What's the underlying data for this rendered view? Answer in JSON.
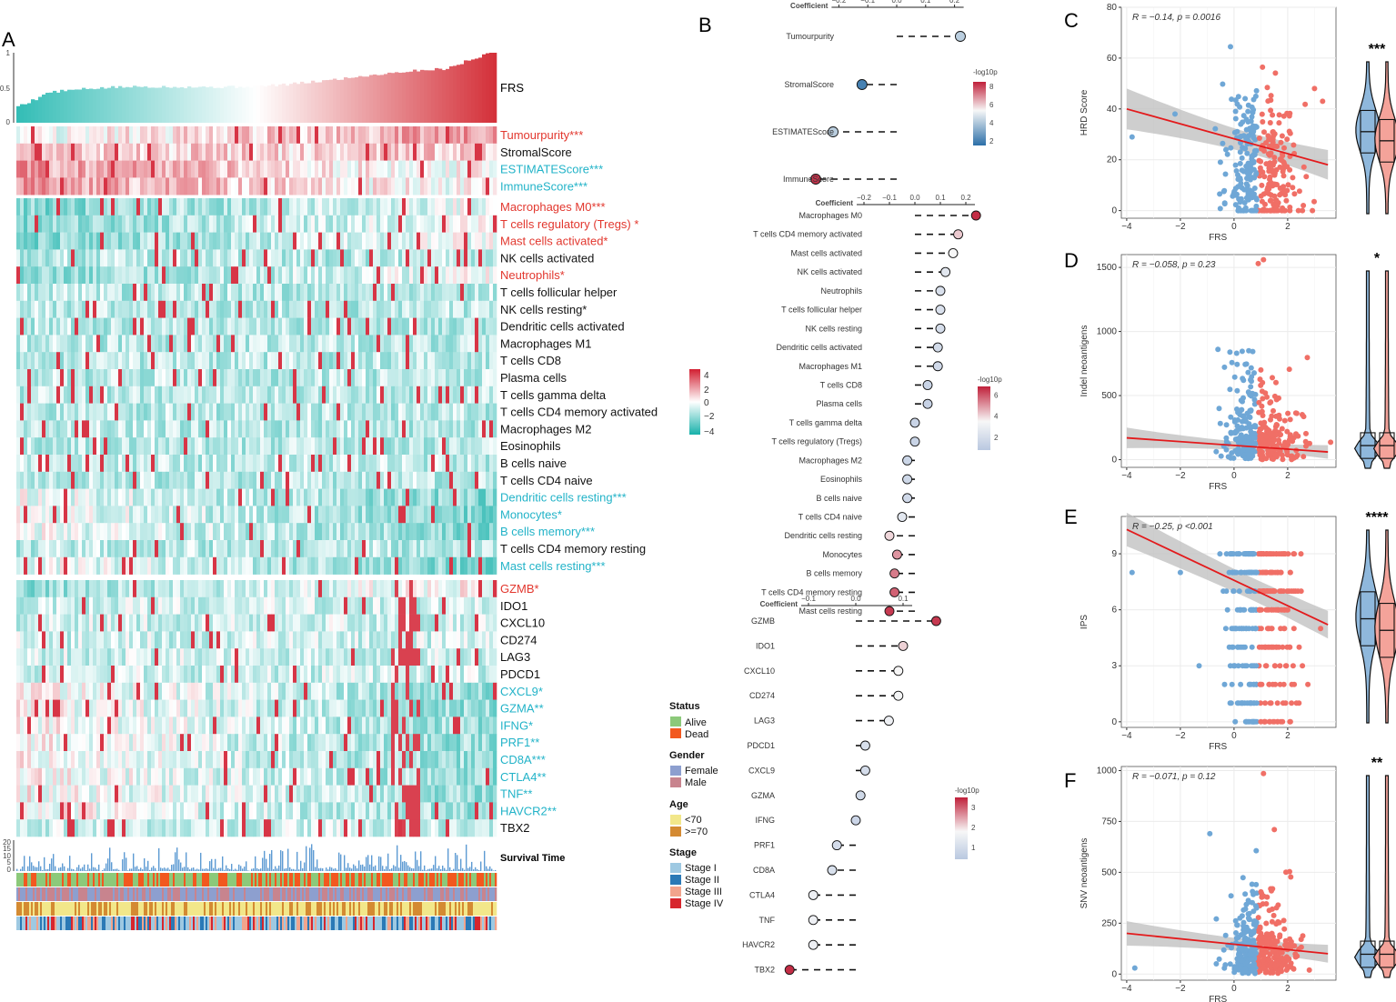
{
  "colors": {
    "teal": "#2ab7b0",
    "red": "#d7262d",
    "label_red": "#e2372e",
    "label_teal": "#22b3c8",
    "blue_pt": "#6fa7d6",
    "red_pt": "#f06f66",
    "grey_band": "#bfbfbf"
  },
  "panel_letters": [
    "A",
    "B",
    "C",
    "D",
    "E",
    "F"
  ],
  "panelA": {
    "frs_label": "FRS",
    "frs_axis": [
      "1",
      "0.5",
      "0"
    ],
    "groups": [
      [
        {
          "name": "Tumourpurity***",
          "tone": "red"
        },
        {
          "name": "StromalScore",
          "tone": "black"
        },
        {
          "name": "ESTIMATEScore***",
          "tone": "teal"
        },
        {
          "name": "ImmuneScore***",
          "tone": "teal"
        }
      ],
      [
        {
          "name": "Macrophages M0***",
          "tone": "red"
        },
        {
          "name": "T cells regulatory (Tregs) *",
          "tone": "red"
        },
        {
          "name": "Mast cells activated*",
          "tone": "red"
        },
        {
          "name": "NK cells activated",
          "tone": "black"
        },
        {
          "name": "Neutrophils*",
          "tone": "red"
        },
        {
          "name": "T cells follicular helper",
          "tone": "black"
        },
        {
          "name": "NK cells resting*",
          "tone": "black"
        },
        {
          "name": "Dendritic cells activated",
          "tone": "black"
        },
        {
          "name": "Macrophages M1",
          "tone": "black"
        },
        {
          "name": "T cells CD8",
          "tone": "black"
        },
        {
          "name": "Plasma cells",
          "tone": "black"
        },
        {
          "name": "T cells gamma delta",
          "tone": "black"
        },
        {
          "name": "T cells CD4 memory activated",
          "tone": "black"
        },
        {
          "name": "Macrophages M2",
          "tone": "black"
        },
        {
          "name": "Eosinophils",
          "tone": "black"
        },
        {
          "name": "B cells naive",
          "tone": "black"
        },
        {
          "name": "T cells CD4 naive",
          "tone": "black"
        },
        {
          "name": "Dendritic cells resting***",
          "tone": "teal"
        },
        {
          "name": "Monocytes*",
          "tone": "teal"
        },
        {
          "name": "B cells memory***",
          "tone": "teal"
        },
        {
          "name": "T cells CD4 memory resting",
          "tone": "black"
        },
        {
          "name": "Mast cells resting***",
          "tone": "teal"
        }
      ],
      [
        {
          "name": "GZMB*",
          "tone": "red"
        },
        {
          "name": "IDO1",
          "tone": "black"
        },
        {
          "name": "CXCL10",
          "tone": "black"
        },
        {
          "name": "CD274",
          "tone": "black"
        },
        {
          "name": "LAG3",
          "tone": "black"
        },
        {
          "name": "PDCD1",
          "tone": "black"
        },
        {
          "name": "CXCL9*",
          "tone": "teal"
        },
        {
          "name": "GZMA**",
          "tone": "teal"
        },
        {
          "name": "IFNG*",
          "tone": "teal"
        },
        {
          "name": "PRF1**",
          "tone": "teal"
        },
        {
          "name": "CD8A***",
          "tone": "teal"
        },
        {
          "name": "CTLA4**",
          "tone": "teal"
        },
        {
          "name": "TNF**",
          "tone": "teal"
        },
        {
          "name": "HAVCR2**",
          "tone": "teal"
        },
        {
          "name": "TBX2",
          "tone": "black"
        }
      ]
    ],
    "survival_label": "Survival Time",
    "survival_axis": [
      "20",
      "15",
      "10",
      "5",
      "0"
    ],
    "scale_ticks": [
      "4",
      "2",
      "0",
      "−2",
      "−4"
    ],
    "annotation_legends": [
      {
        "title": "Status",
        "items": [
          {
            "label": "Alive",
            "color": "#8cc97a"
          },
          {
            "label": "Dead",
            "color": "#f2581f"
          }
        ]
      },
      {
        "title": "Gender",
        "items": [
          {
            "label": "Female",
            "color": "#8d9fcf"
          },
          {
            "label": "Male",
            "color": "#c8848e"
          }
        ]
      },
      {
        "title": "Age",
        "items": [
          {
            "label": "<70",
            "color": "#f2e78a"
          },
          {
            "label": ">=70",
            "color": "#d48a32"
          }
        ]
      },
      {
        "title": "Stage",
        "items": [
          {
            "label": "Stage I",
            "color": "#9ec9e2"
          },
          {
            "label": "Stage II",
            "color": "#2a79b6"
          },
          {
            "label": "Stage III",
            "color": "#f2a48c"
          },
          {
            "label": "Stage IV",
            "color": "#d7262d"
          }
        ]
      }
    ]
  },
  "panelB": {
    "coef_title": "Coefficient",
    "legend_title": "-log10p",
    "sections": [
      {
        "ticks": [
          "−0.2",
          "−0.1",
          "0.0",
          "0.1",
          "0.2"
        ],
        "tick_values": [
          -0.2,
          -0.1,
          0,
          0.1,
          0.2
        ],
        "legend_ticks": [
          "8",
          "6",
          "4",
          "2"
        ],
        "legend_values": [
          8,
          6,
          4,
          2
        ],
        "lp_range": [
          1.5,
          8.5
        ],
        "rows": [
          {
            "name": "Tumourpurity",
            "coef": 0.22,
            "lp": 4.2
          },
          {
            "name": "StromalScore",
            "coef": -0.12,
            "lp": 2.0
          },
          {
            "name": "ESTIMATEScore",
            "coef": -0.22,
            "lp": 4.2
          },
          {
            "name": "ImmuneScore",
            "coef": -0.28,
            "lp": 8.2
          }
        ]
      },
      {
        "ticks": [
          "−0.2",
          "−0.1",
          "0.0",
          "0.1",
          "0.2"
        ],
        "tick_values": [
          -0.2,
          -0.1,
          0,
          0.1,
          0.2
        ],
        "legend_ticks": [
          "6",
          "4",
          "2"
        ],
        "legend_values": [
          6,
          4,
          2
        ],
        "lp_range": [
          0.8,
          6.8
        ],
        "rows": [
          {
            "name": "Macrophages M0",
            "coef": 0.24,
            "lp": 6.6
          },
          {
            "name": "T cells CD4 memory activated",
            "coef": 0.17,
            "lp": 4.2
          },
          {
            "name": "Mast cells activated",
            "coef": 0.15,
            "lp": 3.5
          },
          {
            "name": "NK cells activated",
            "coef": 0.12,
            "lp": 2.6
          },
          {
            "name": "Neutrophils",
            "coef": 0.1,
            "lp": 2.2
          },
          {
            "name": "T cells follicular helper",
            "coef": 0.1,
            "lp": 2.2
          },
          {
            "name": "NK cells resting",
            "coef": 0.1,
            "lp": 2.0
          },
          {
            "name": "Dendritic cells activated",
            "coef": 0.09,
            "lp": 1.9
          },
          {
            "name": "Macrophages M1",
            "coef": 0.09,
            "lp": 1.8
          },
          {
            "name": "T cells CD8",
            "coef": 0.05,
            "lp": 1.5
          },
          {
            "name": "Plasma cells",
            "coef": 0.05,
            "lp": 1.4
          },
          {
            "name": "T cells gamma delta",
            "coef": 0.0,
            "lp": 1.5
          },
          {
            "name": "T cells regulatory (Tregs)",
            "coef": 0.0,
            "lp": 1.5
          },
          {
            "name": "Macrophages M2",
            "coef": -0.03,
            "lp": 1.6
          },
          {
            "name": "Eosinophils",
            "coef": -0.03,
            "lp": 1.7
          },
          {
            "name": "B cells naive",
            "coef": -0.03,
            "lp": 1.8
          },
          {
            "name": "T cells CD4 naive",
            "coef": -0.05,
            "lp": 2.6
          },
          {
            "name": "Dendritic cells resting",
            "coef": -0.1,
            "lp": 4.0
          },
          {
            "name": "Monocytes",
            "coef": -0.07,
            "lp": 5.0
          },
          {
            "name": "B cells memory",
            "coef": -0.08,
            "lp": 5.4
          },
          {
            "name": "T cells CD4 memory resting",
            "coef": -0.08,
            "lp": 5.8
          },
          {
            "name": "Mast cells resting",
            "coef": -0.1,
            "lp": 6.4
          }
        ]
      },
      {
        "ticks": [
          "−0.1",
          "0.0",
          "0.1"
        ],
        "tick_values": [
          -0.1,
          0,
          0.1
        ],
        "legend_ticks": [
          "3",
          "2",
          "1"
        ],
        "legend_values": [
          3,
          2,
          1
        ],
        "lp_range": [
          0.4,
          3.5
        ],
        "rows": [
          {
            "name": "GZMB",
            "coef": 0.17,
            "lp": 3.3
          },
          {
            "name": "IDO1",
            "coef": 0.1,
            "lp": 2.1
          },
          {
            "name": "CXCL10",
            "coef": 0.09,
            "lp": 1.8
          },
          {
            "name": "CD274",
            "coef": 0.09,
            "lp": 1.7
          },
          {
            "name": "LAG3",
            "coef": 0.07,
            "lp": 1.6
          },
          {
            "name": "PDCD1",
            "coef": 0.02,
            "lp": 1.1
          },
          {
            "name": "CXCL9",
            "coef": 0.02,
            "lp": 1.0
          },
          {
            "name": "GZMA",
            "coef": 0.01,
            "lp": 0.9
          },
          {
            "name": "IFNG",
            "coef": 0.0,
            "lp": 0.8
          },
          {
            "name": "PRF1",
            "coef": -0.04,
            "lp": 1.0
          },
          {
            "name": "CD8A",
            "coef": -0.05,
            "lp": 1.1
          },
          {
            "name": "CTLA4",
            "coef": -0.09,
            "lp": 1.6
          },
          {
            "name": "TNF",
            "coef": -0.09,
            "lp": 1.6
          },
          {
            "name": "HAVCR2",
            "coef": -0.09,
            "lp": 1.6
          },
          {
            "name": "TBX2",
            "coef": -0.14,
            "lp": 3.4
          }
        ]
      }
    ]
  },
  "chart_data": [
    {
      "type": "scatter",
      "panel": "C",
      "xlabel": "FRS",
      "ylabel": "HRD Score",
      "stat": "R = −0.14, p = 0.0016",
      "xlim": [
        -4.2,
        3.8
      ],
      "ylim": [
        -3,
        80
      ],
      "xticks": [
        -4,
        -2,
        0,
        2
      ],
      "yticks": [
        0,
        20,
        40,
        60,
        80
      ],
      "fit": {
        "x": [
          -4,
          3.5
        ],
        "y": [
          40,
          18
        ]
      },
      "band": [
        8,
        4
      ],
      "violin_sig": "***",
      "seed": 11,
      "n": 340,
      "mode": "cont",
      "blue_center": [
        18,
        40
      ],
      "red_center": [
        15,
        38
      ],
      "outliers": [
        [
          -2.2,
          38
        ],
        [
          -3.8,
          29
        ],
        [
          3,
          48
        ],
        [
          3.3,
          43
        ]
      ]
    },
    {
      "type": "scatter",
      "panel": "D",
      "xlabel": "FRS",
      "ylabel": "Indel neoantigens",
      "stat": "R = −0.058, p = 0.23",
      "xlim": [
        -4.2,
        3.8
      ],
      "ylim": [
        -60,
        1600
      ],
      "xticks": [
        -4,
        -2,
        0,
        2
      ],
      "yticks": [
        0,
        500,
        1000,
        1500
      ],
      "fit": {
        "x": [
          -4,
          3.5
        ],
        "y": [
          170,
          60
        ]
      },
      "band": [
        80,
        30
      ],
      "violin_sig": "*",
      "seed": 23,
      "n": 340,
      "mode": "skew",
      "blue_center": [
        50,
        200
      ],
      "red_center": [
        50,
        180
      ],
      "outliers": [
        [
          0.9,
          1530
        ],
        [
          1.1,
          1560
        ],
        [
          -0.6,
          860
        ],
        [
          0.1,
          830
        ],
        [
          1.0,
          700
        ]
      ]
    },
    {
      "type": "scatter",
      "panel": "E",
      "xlabel": "FRS",
      "ylabel": "IPS",
      "stat": "R = −0.25, p <0.001",
      "xlim": [
        -4.2,
        3.8
      ],
      "ylim": [
        -0.3,
        11
      ],
      "xticks": [
        -4,
        -2,
        0,
        2
      ],
      "yticks": [
        0,
        3,
        6,
        9
      ],
      "fit": {
        "x": [
          -4,
          3.5
        ],
        "y": [
          10.3,
          5.2
        ]
      },
      "band": [
        0.9,
        0.6
      ],
      "violin_sig": "****",
      "seed": 37,
      "n": 380,
      "mode": "discrete",
      "blue_center": [
        8,
        1.5
      ],
      "red_center": [
        7,
        2
      ],
      "outliers": [
        [
          -3.8,
          8
        ],
        [
          -2,
          8
        ],
        [
          -1.3,
          3
        ],
        [
          1,
          0
        ],
        [
          1.5,
          0
        ]
      ]
    },
    {
      "type": "scatter",
      "panel": "F",
      "xlabel": "FRS",
      "ylabel": "SNV neoantigens",
      "stat": "R = −0.071, p = 0.12",
      "xlim": [
        -4.2,
        3.8
      ],
      "ylim": [
        -30,
        1020
      ],
      "xticks": [
        -4,
        -2,
        0,
        2
      ],
      "yticks": [
        0,
        250,
        500,
        750,
        1000
      ],
      "fit": {
        "x": [
          -4,
          3.5
        ],
        "y": [
          200,
          100
        ]
      },
      "band": [
        60,
        30
      ],
      "violin_sig": "**",
      "seed": 53,
      "n": 360,
      "mode": "skew",
      "blue_center": [
        100,
        140
      ],
      "red_center": [
        90,
        130
      ],
      "outliers": [
        [
          1.1,
          985
        ],
        [
          -0.9,
          690
        ],
        [
          1.5,
          710
        ],
        [
          -3.7,
          30
        ]
      ]
    }
  ]
}
